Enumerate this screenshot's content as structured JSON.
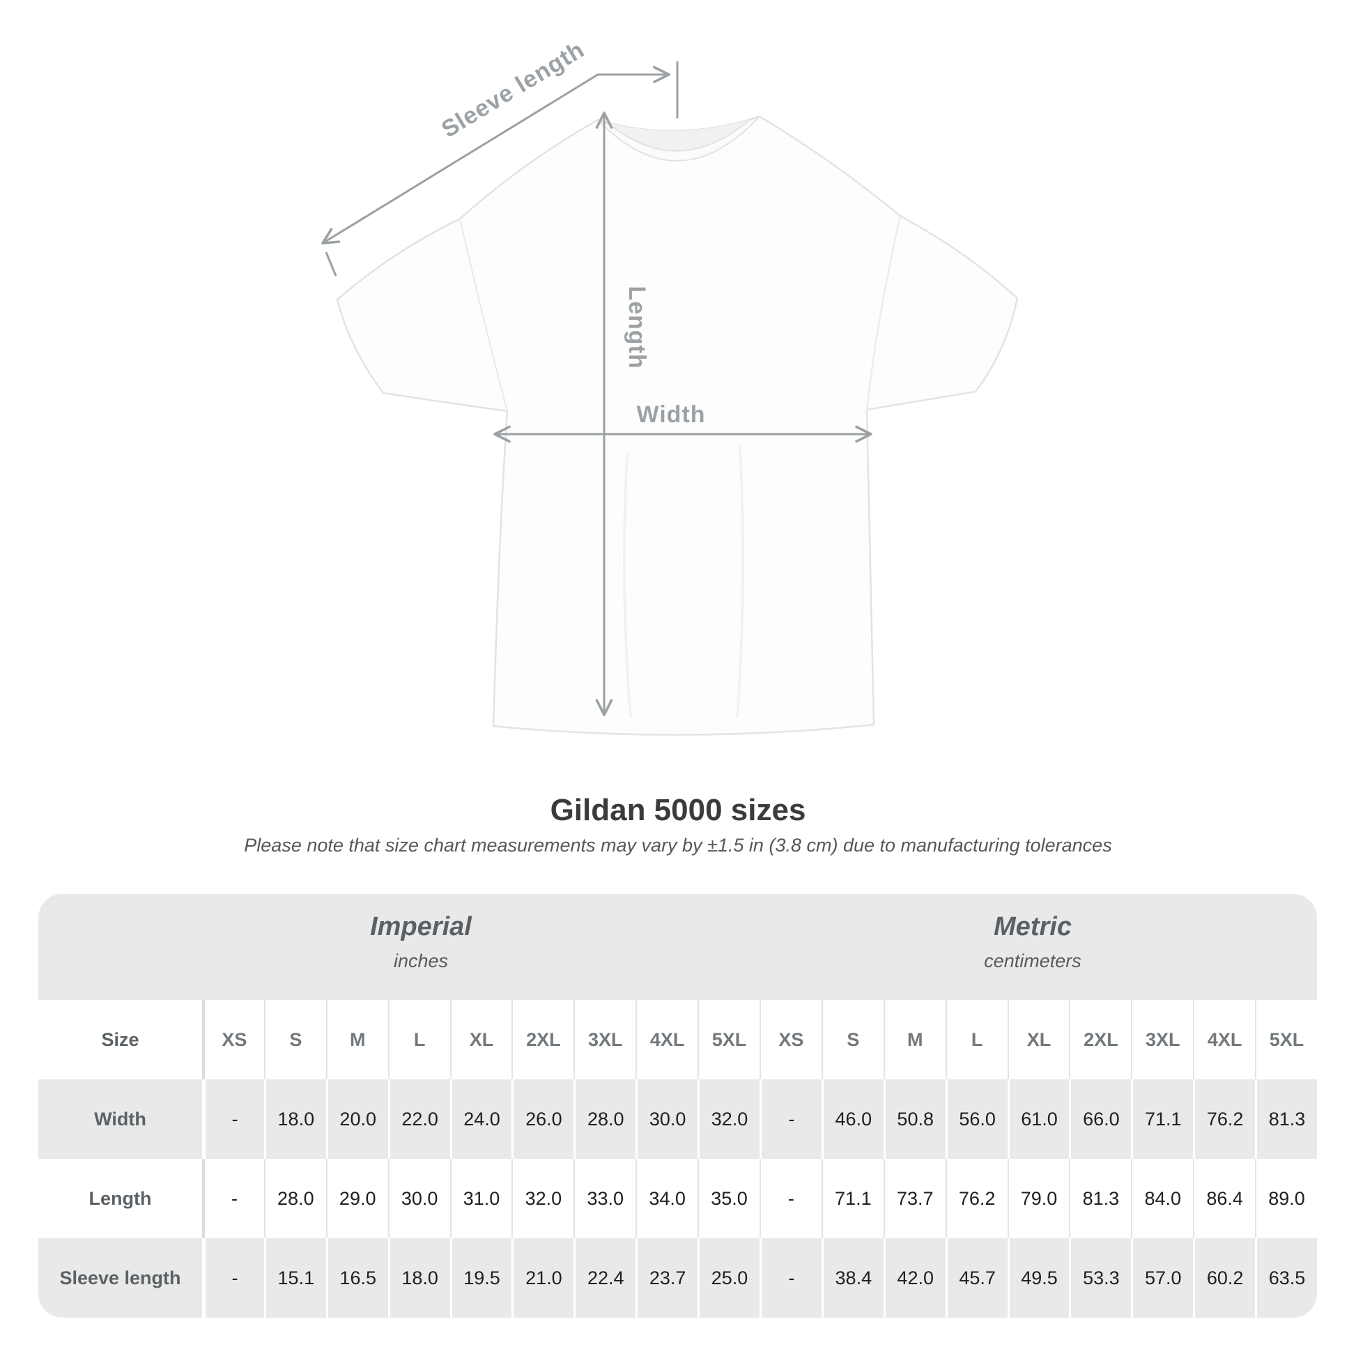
{
  "chart_data": {
    "type": "table",
    "title": "Gildan 5000 sizes",
    "note": "Please note that size chart measurements may vary by ±1.5 in (3.8 cm) due to manufacturing tolerances",
    "unit_groups": [
      {
        "label": "Imperial",
        "sublabel": "inches"
      },
      {
        "label": "Metric",
        "sublabel": "centimeters"
      }
    ],
    "corner_header": "Size",
    "column_headers": [
      "XS",
      "S",
      "M",
      "L",
      "XL",
      "2XL",
      "3XL",
      "4XL",
      "5XL",
      "XS",
      "S",
      "M",
      "L",
      "XL",
      "2XL",
      "3XL",
      "4XL",
      "5XL"
    ],
    "rows": [
      {
        "label": "Width",
        "values": [
          "-",
          "18.0",
          "20.0",
          "22.0",
          "24.0",
          "26.0",
          "28.0",
          "30.0",
          "32.0",
          "-",
          "46.0",
          "50.8",
          "56.0",
          "61.0",
          "66.0",
          "71.1",
          "76.2",
          "81.3"
        ]
      },
      {
        "label": "Length",
        "values": [
          "-",
          "28.0",
          "29.0",
          "30.0",
          "31.0",
          "32.0",
          "33.0",
          "34.0",
          "35.0",
          "-",
          "71.1",
          "73.7",
          "76.2",
          "79.0",
          "81.3",
          "84.0",
          "86.4",
          "89.0"
        ]
      },
      {
        "label": "Sleeve length",
        "values": [
          "-",
          "15.1",
          "16.5",
          "18.0",
          "19.5",
          "21.0",
          "22.4",
          "23.7",
          "25.0",
          "-",
          "38.4",
          "42.0",
          "45.7",
          "49.5",
          "53.3",
          "57.0",
          "60.2",
          "63.5"
        ]
      }
    ]
  },
  "diagram": {
    "sleeve_length_label": "Sleeve length",
    "length_label": "Length",
    "width_label": "Width"
  },
  "colors": {
    "band_gray": "#e9e9e9",
    "measure_line_gray": "#9ba1a4",
    "value_text": "#1f1f1f",
    "header_text": "#5b6266",
    "title_text": "#393b3c"
  }
}
